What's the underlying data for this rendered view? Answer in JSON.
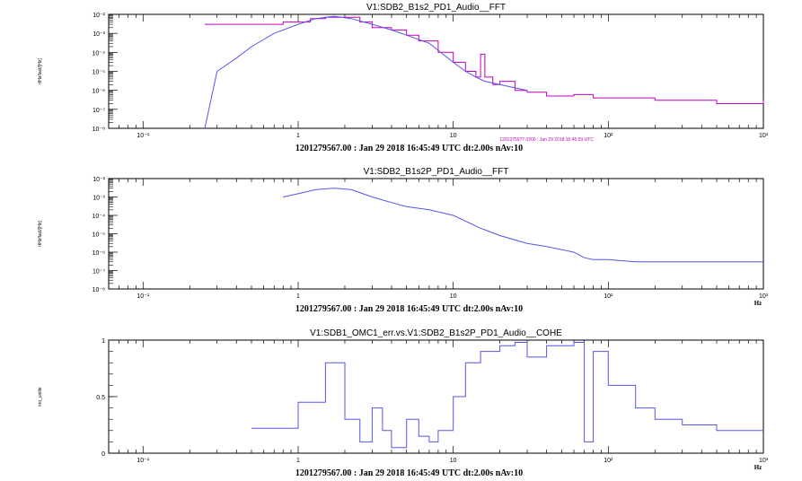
{
  "chart_data": [
    {
      "type": "line",
      "title": "V1:SDB2_B1s2_PD1_Audio__FFT",
      "ylabel": "rtHz/lact/[Hz]",
      "footer": "1201279567.00 : Jan 29 2018 16:45:49 UTC dt:2.00s nAv:10",
      "annotation": "1201275977.0200 : Jan 29 2018 15:45:59 UTC",
      "xscale": "log",
      "yscale": "log",
      "xlim": [
        0.06,
        1000
      ],
      "ylim": [
        1e-08,
        0.01
      ],
      "x_ticks": [
        "10⁻¹",
        "1",
        "10",
        "10²",
        "10³"
      ],
      "y_ticks": [
        "10⁻⁸",
        "10⁻⁷",
        "10⁻⁶",
        "10⁻⁵",
        "10⁻⁴",
        "10⁻³",
        "10⁻²"
      ],
      "series": [
        {
          "color": "#c000c0",
          "style": "step",
          "x": [
            0.25,
            0.5,
            0.8,
            1.2,
            1.5,
            2.0,
            2.5,
            3.0,
            4.0,
            5.0,
            6.0,
            8.0,
            10,
            12,
            14,
            15,
            16,
            18,
            20,
            25,
            30,
            40,
            60,
            80,
            100,
            150,
            200,
            300,
            400,
            500,
            700,
            1000
          ],
          "y": [
            0.003,
            0.003,
            0.004,
            0.006,
            0.007,
            0.007,
            0.004,
            0.002,
            0.0015,
            0.0008,
            0.0004,
            0.0001,
            3e-05,
            1e-05,
            5e-06,
            8e-05,
            5e-06,
            2e-06,
            3e-06,
            1e-06,
            8e-07,
            5e-07,
            6e-07,
            4e-07,
            4e-07,
            4e-07,
            3e-07,
            3e-07,
            3e-07,
            2e-07,
            2e-07,
            3e-07
          ]
        },
        {
          "color": "#5555ee",
          "style": "line",
          "x": [
            0.25,
            0.3,
            0.4,
            0.5,
            0.7,
            1.0,
            1.3,
            1.7,
            2.2,
            3.0,
            4.0,
            5.0,
            7.0,
            10,
            12,
            14,
            16,
            20,
            30
          ],
          "y": [
            1e-08,
            1e-05,
            5e-05,
            0.0002,
            0.001,
            0.003,
            0.006,
            0.008,
            0.006,
            0.003,
            0.0015,
            0.0008,
            0.0003,
            3e-05,
            1e-05,
            5e-06,
            3e-06,
            2e-06,
            1e-06
          ]
        }
      ]
    },
    {
      "type": "line",
      "title": "V1:SDB2_B1s2P_PD1_Audio__FFT",
      "ylabel": "rtHz/lact/[Hz]",
      "footer": "1201279567.00 : Jan 29 2018 16:45:49 UTC dt:2.00s nAv:10",
      "xunit": "Hz",
      "xscale": "log",
      "yscale": "log",
      "xlim": [
        0.06,
        1000
      ],
      "ylim": [
        1e-08,
        0.01
      ],
      "x_ticks": [
        "10⁻¹",
        "1",
        "10",
        "10²",
        "10³"
      ],
      "y_ticks": [
        "10⁻⁸",
        "10⁻⁷",
        "10⁻⁶",
        "10⁻⁵",
        "10⁻⁴",
        "10⁻³",
        "10⁻²"
      ],
      "series": [
        {
          "color": "#5555ee",
          "style": "line",
          "x": [
            0.8,
            1.0,
            1.3,
            1.7,
            2.2,
            3.0,
            4.0,
            5.0,
            7.0,
            10,
            15,
            20,
            30,
            40,
            60,
            70,
            80,
            100,
            150,
            200,
            300,
            500,
            700,
            1000
          ],
          "y": [
            0.001,
            0.0015,
            0.0025,
            0.003,
            0.0025,
            0.001,
            0.0005,
            0.0003,
            0.0002,
            0.0001,
            2e-05,
            8e-06,
            3e-06,
            2e-06,
            1e-06,
            5e-07,
            4e-07,
            4e-07,
            3e-07,
            3e-07,
            3e-07,
            3e-07,
            3e-07,
            3e-07
          ]
        }
      ]
    },
    {
      "type": "line",
      "title": "V1:SDB1_OMC1_err.vs.V1:SDB2_B1s2P_PD1_Audio__COHE",
      "ylabel": "ino_unitle",
      "footer": "1201279567.00 : Jan 29 2018 16:45:49 UTC dt:2.00s nAv:10",
      "xunit": "Hz",
      "xscale": "log",
      "yscale": "linear",
      "xlim": [
        0.06,
        1000
      ],
      "ylim": [
        0,
        1
      ],
      "x_ticks": [
        "10⁻¹",
        "1",
        "10",
        "10²",
        "10³"
      ],
      "y_ticks": [
        "0",
        "0.5",
        "1"
      ],
      "series": [
        {
          "color": "#5555ee",
          "style": "step",
          "x": [
            0.5,
            1.0,
            1.5,
            2.0,
            2.5,
            3.0,
            3.5,
            4.0,
            5.0,
            6.0,
            7.0,
            8.0,
            10,
            12,
            15,
            20,
            25,
            30,
            40,
            60,
            70,
            80,
            100,
            150,
            200,
            300,
            500,
            700,
            1000
          ],
          "y": [
            0.22,
            0.45,
            0.8,
            0.3,
            0.1,
            0.4,
            0.2,
            0.05,
            0.3,
            0.15,
            0.1,
            0.2,
            0.5,
            0.8,
            0.9,
            0.95,
            0.98,
            0.85,
            0.95,
            0.98,
            0.1,
            0.9,
            0.6,
            0.4,
            0.3,
            0.25,
            0.2,
            0.2,
            0.2
          ]
        }
      ]
    }
  ]
}
